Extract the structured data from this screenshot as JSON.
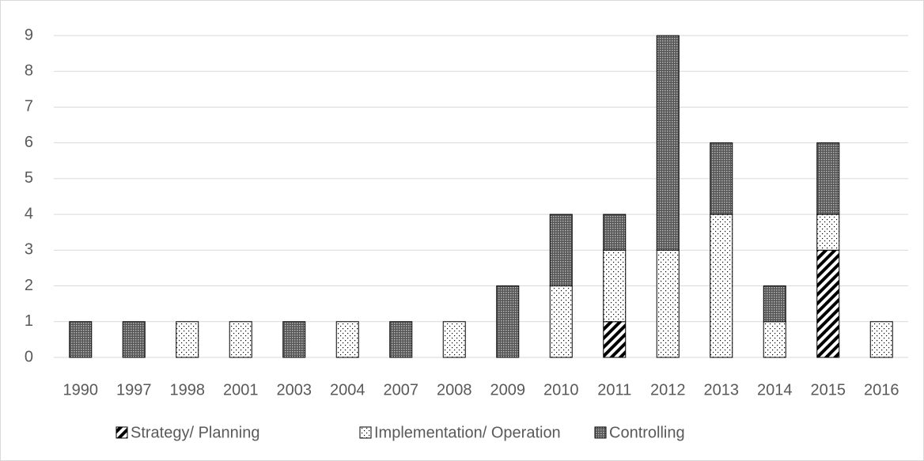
{
  "chart_data": {
    "type": "bar",
    "stacked": true,
    "categories": [
      "1990",
      "1997",
      "1998",
      "2001",
      "2003",
      "2004",
      "2007",
      "2008",
      "2009",
      "2010",
      "2011",
      "2012",
      "2013",
      "2014",
      "2015",
      "2016"
    ],
    "series": [
      {
        "name": "Strategy/ Planning",
        "values": [
          0,
          0,
          0,
          0,
          0,
          0,
          0,
          0,
          0,
          0,
          1,
          0,
          0,
          0,
          3,
          0
        ]
      },
      {
        "name": "Implementation/ Operation",
        "values": [
          0,
          0,
          1,
          1,
          0,
          1,
          0,
          1,
          0,
          2,
          2,
          3,
          4,
          1,
          1,
          1
        ]
      },
      {
        "name": "Controlling",
        "values": [
          1,
          1,
          0,
          0,
          1,
          0,
          1,
          0,
          2,
          2,
          1,
          6,
          2,
          1,
          2,
          0
        ]
      }
    ],
    "ylim": [
      0,
      9
    ],
    "yticks": [
      0,
      1,
      2,
      3,
      4,
      5,
      6,
      7,
      8,
      9
    ],
    "grid": true,
    "legend": "bottom"
  }
}
